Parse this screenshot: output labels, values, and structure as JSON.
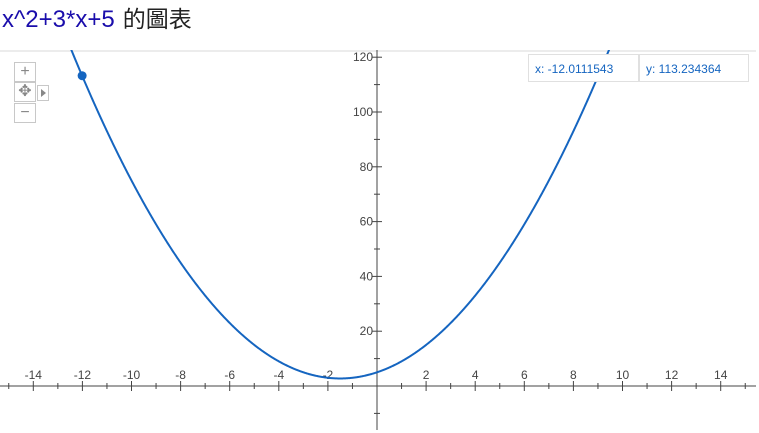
{
  "header": {
    "expression": "x^2+3*x+5",
    "suffix": "的圖表"
  },
  "controls": {
    "zoom_in": "+",
    "zoom_out": "−",
    "pan": "✥"
  },
  "readout": {
    "x_label": "x: -12.0111543",
    "y_label": "y: 113.234364"
  },
  "colors": {
    "curve": "#1565c0",
    "axis": "#444444",
    "link": "#1a0dab"
  },
  "chart_data": {
    "type": "line",
    "function": "x^2+3*x+5",
    "xlim": [
      -15,
      15.5
    ],
    "ylim": [
      -15,
      120
    ],
    "x_ticks": [
      -14,
      -12,
      -10,
      -8,
      -6,
      -4,
      -2,
      2,
      4,
      6,
      8,
      10,
      12,
      14
    ],
    "y_ticks": [
      20,
      40,
      60,
      80,
      100,
      120
    ],
    "highlight_point": {
      "x": -12.0111543,
      "y": 113.234364
    }
  }
}
